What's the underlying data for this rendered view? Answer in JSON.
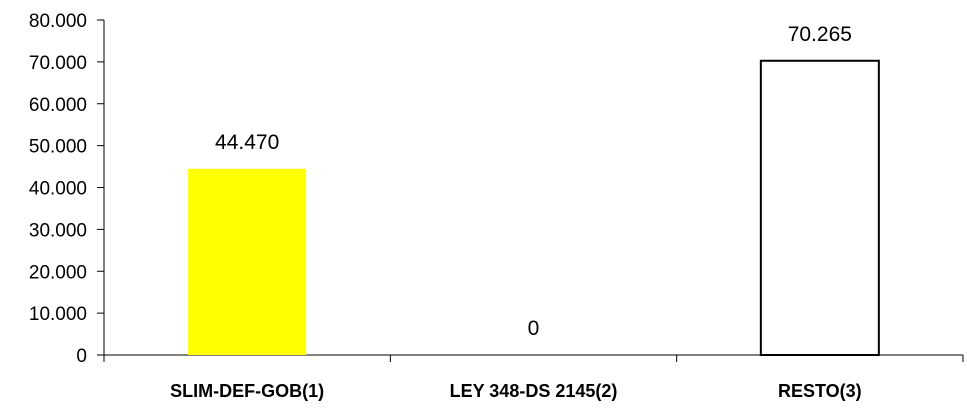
{
  "chart_data": {
    "type": "bar",
    "categories": [
      "SLIM-DEF-GOB(1)",
      "LEY 348-DS 2145(2)",
      "RESTO(3)"
    ],
    "values": [
      44470,
      0,
      70265
    ],
    "value_labels": [
      "44.470",
      "0",
      "70.265"
    ],
    "ylim": [
      0,
      80000
    ],
    "yticks": [
      0,
      10000,
      20000,
      30000,
      40000,
      50000,
      60000,
      70000,
      80000
    ],
    "ytick_labels": [
      "0",
      "10.000",
      "20.000",
      "30.000",
      "40.000",
      "50.000",
      "60.000",
      "70.000",
      "80.000"
    ],
    "bar_fills": [
      "#ffff00",
      "#ffffff",
      "#ffffff"
    ],
    "bar_outlined": [
      false,
      false,
      true
    ],
    "grid": false,
    "legend": "none"
  }
}
